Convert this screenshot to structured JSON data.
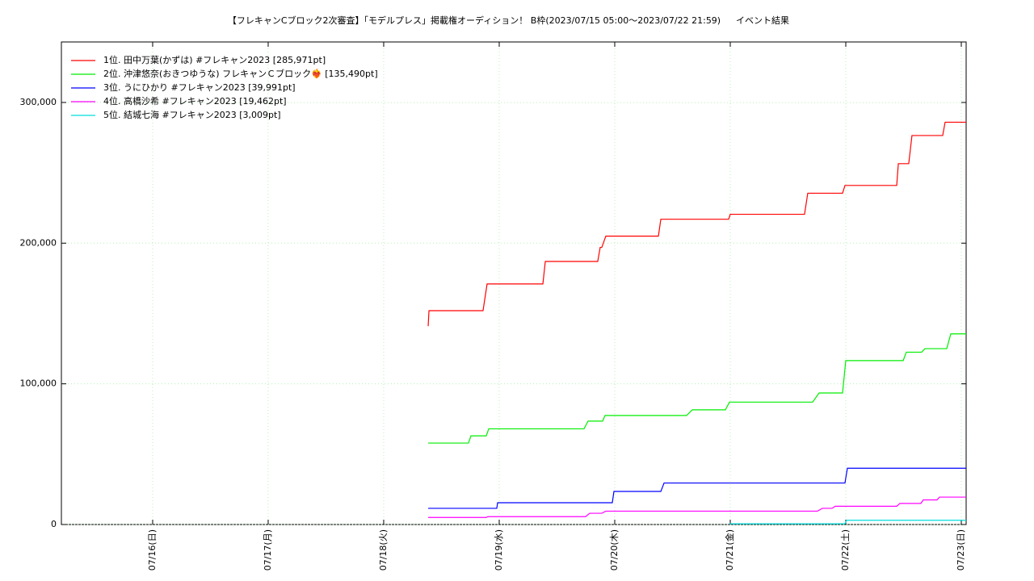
{
  "chart_data": {
    "type": "line",
    "title": "【フレキャンCブロック2次審査】「モデルプレス」掲載権オーディション！ B枠(2023/07/15 05:00～2023/07/22 21:59)",
    "subtitle": "イベント結果",
    "xlim": [
      15.21,
      23.042
    ],
    "xticks": [
      {
        "value": 16,
        "label": "07/16(日)"
      },
      {
        "value": 17,
        "label": "07/17(月)"
      },
      {
        "value": 18,
        "label": "07/18(火)"
      },
      {
        "value": 19,
        "label": "07/19(水)"
      },
      {
        "value": 20,
        "label": "07/20(木)"
      },
      {
        "value": 21,
        "label": "07/21(金)"
      },
      {
        "value": 22,
        "label": "07/22(土)"
      },
      {
        "value": 23,
        "label": "07/23(日)"
      }
    ],
    "ylim": [
      0,
      343000
    ],
    "yticks": [
      0,
      {
        "value": 100000,
        "label": "100,000"
      },
      {
        "value": 200000,
        "label": "200,000"
      },
      {
        "value": 300000,
        "label": "300,000"
      }
    ],
    "grid": true,
    "legend": "top-left",
    "series": [
      {
        "name": "1位. 田中万葉(かずは) #フレキャン2023 [285,971pt]",
        "color": "#ff0000",
        "x": [
          18.385,
          18.392,
          18.86,
          18.895,
          19.378,
          19.399,
          19.853,
          19.874,
          19.888,
          19.923,
          20.378,
          20.399,
          20.986,
          21.0,
          21.643,
          21.671,
          21.972,
          21.993,
          22.441,
          22.455,
          22.545,
          22.573,
          22.839,
          22.86,
          23.042
        ],
        "values": [
          141000,
          152000,
          152000,
          171000,
          171000,
          187000,
          187000,
          197000,
          197000,
          205000,
          205000,
          217000,
          217000,
          220500,
          220500,
          235500,
          235500,
          241000,
          241000,
          256500,
          256500,
          276500,
          276500,
          285971,
          285971
        ]
      },
      {
        "name": "2位. 沖津悠奈(おきつゆうな) フレキャンＣブロック❤️‍🔥 [135,490pt]",
        "color": "#00ee00",
        "x": [
          18.385,
          18.734,
          18.755,
          18.888,
          18.909,
          19.734,
          19.769,
          19.895,
          19.916,
          20.622,
          20.671,
          20.958,
          20.993,
          21.713,
          21.769,
          21.972,
          22.0,
          22.497,
          22.524,
          22.657,
          22.685,
          22.874,
          22.909,
          23.042
        ],
        "values": [
          57900,
          57900,
          63000,
          63000,
          68000,
          68000,
          73500,
          73500,
          77500,
          77500,
          81500,
          81500,
          87000,
          87000,
          93500,
          93500,
          116500,
          116500,
          122500,
          122500,
          125000,
          125000,
          135490,
          135490
        ]
      },
      {
        "name": "3位. うにひかり #フレキャン2023 [39,991pt]",
        "color": "#0000ff",
        "x": [
          18.385,
          18.979,
          18.986,
          19.979,
          19.993,
          20.399,
          20.427,
          21.993,
          22.014,
          23.042
        ],
        "values": [
          11500,
          11500,
          15500,
          15500,
          23500,
          23500,
          29500,
          29500,
          39991,
          39991
        ]
      },
      {
        "name": "4位. 高橋沙希 #フレキャン2023 [19,462pt]",
        "color": "#ff00ff",
        "x": [
          18.385,
          18.888,
          18.902,
          19.748,
          19.783,
          19.888,
          19.923,
          21.755,
          21.797,
          21.881,
          21.909,
          22.441,
          22.469,
          22.65,
          22.671,
          22.79,
          22.811,
          23.042
        ],
        "values": [
          5000,
          5000,
          5600,
          5600,
          8000,
          8000,
          9500,
          9500,
          11500,
          11500,
          13000,
          13000,
          15000,
          15000,
          17500,
          17500,
          19462,
          19462
        ]
      },
      {
        "name": "5位. 結城七海 #フレキャン2023 [3,009pt]",
        "color": "#00dddd",
        "x": [
          20.993,
          21.993,
          22.007,
          23.042
        ],
        "values": [
          500,
          500,
          3009,
          3009
        ]
      }
    ]
  }
}
